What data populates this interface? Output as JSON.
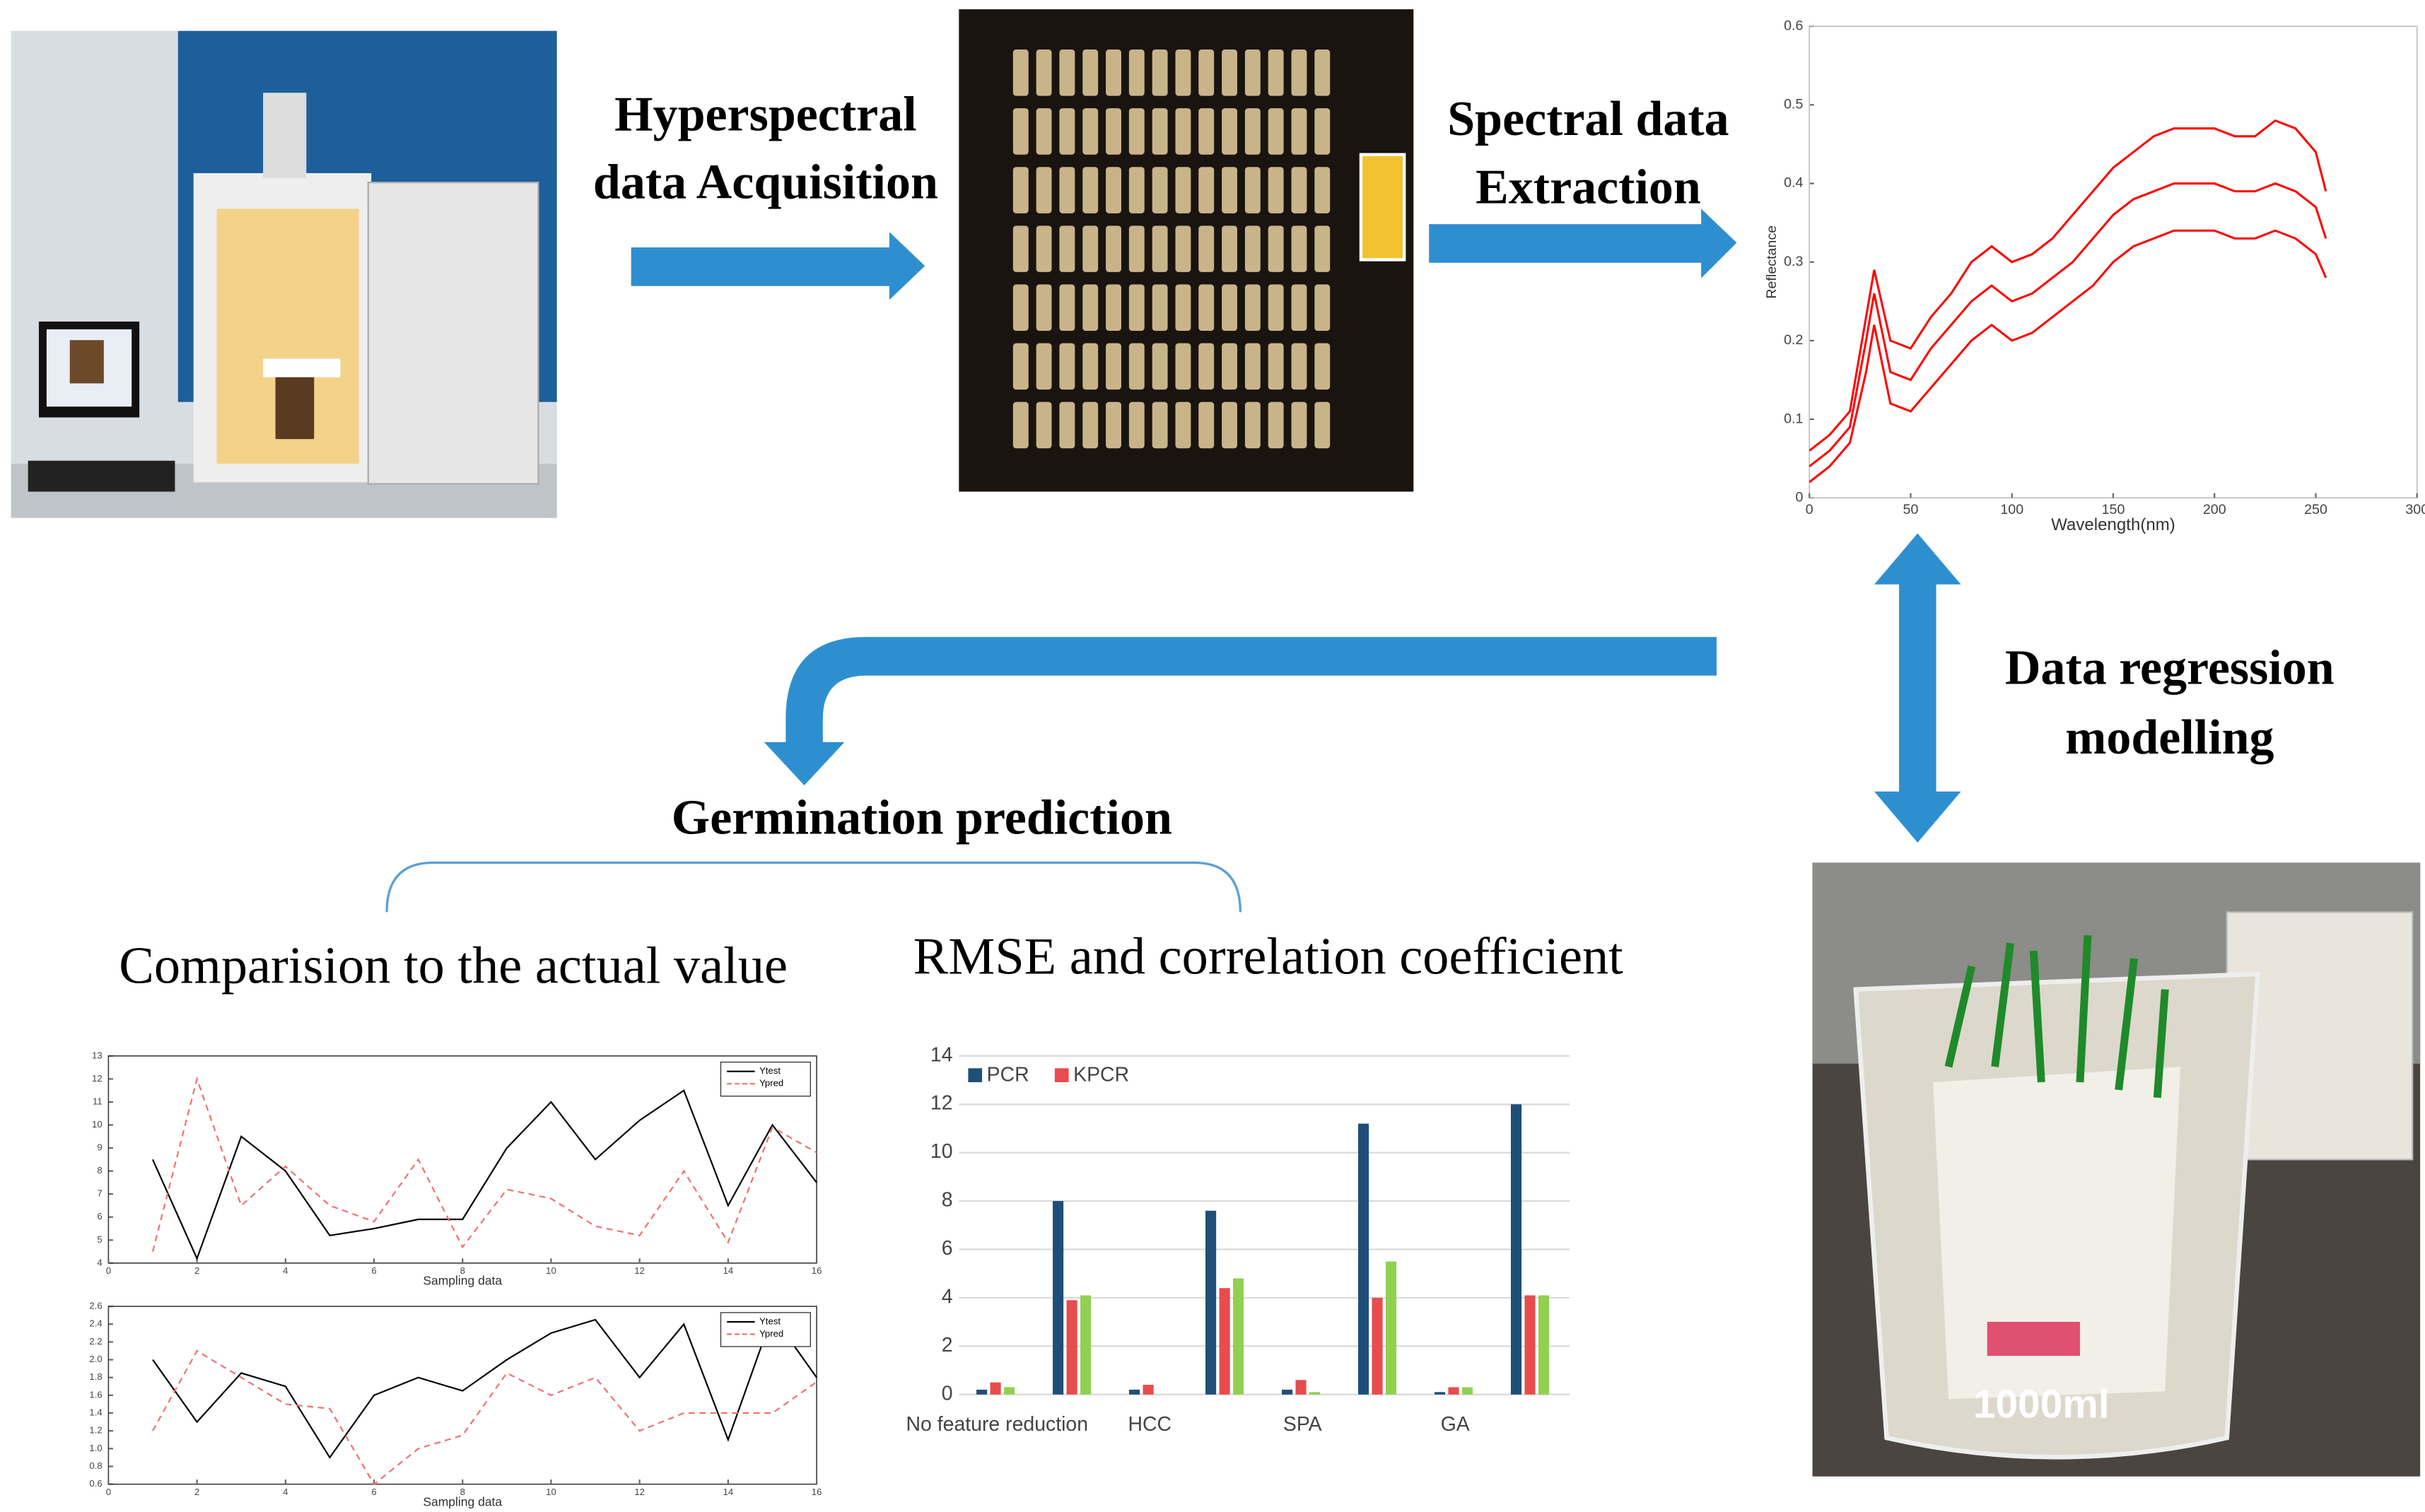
{
  "steps": {
    "acquisition": [
      "Hyperspectral",
      "data Acquisition"
    ],
    "extraction": [
      "Spectral data",
      "Extraction"
    ],
    "regression": [
      "Data regression",
      "modelling"
    ],
    "prediction": "Germination prediction"
  },
  "subtitles": [
    "Comparision to the actual value",
    "RMSE and correlation coefficient"
  ],
  "chart_data": [
    {
      "type": "line",
      "xlabel": "Wavelength(nm)",
      "ylabel": "Reflectance",
      "color": "#ff0000",
      "x": [
        0,
        10,
        20,
        28,
        32,
        40,
        50,
        60,
        70,
        80,
        90,
        100,
        110,
        120,
        130,
        140,
        150,
        160,
        170,
        180,
        190,
        200,
        210,
        220,
        230,
        240,
        250,
        255
      ],
      "series": [
        {
          "values": [
            0.02,
            0.04,
            0.07,
            0.16,
            0.22,
            0.12,
            0.11,
            0.14,
            0.17,
            0.2,
            0.22,
            0.2,
            0.21,
            0.23,
            0.25,
            0.27,
            0.3,
            0.32,
            0.33,
            0.34,
            0.34,
            0.34,
            0.33,
            0.33,
            0.34,
            0.33,
            0.31,
            0.28
          ]
        },
        {
          "values": [
            0.04,
            0.06,
            0.09,
            0.2,
            0.26,
            0.16,
            0.15,
            0.19,
            0.22,
            0.25,
            0.27,
            0.25,
            0.26,
            0.28,
            0.3,
            0.33,
            0.36,
            0.38,
            0.39,
            0.4,
            0.4,
            0.4,
            0.39,
            0.39,
            0.4,
            0.39,
            0.37,
            0.33
          ]
        },
        {
          "values": [
            0.06,
            0.08,
            0.11,
            0.23,
            0.29,
            0.2,
            0.19,
            0.23,
            0.26,
            0.3,
            0.32,
            0.3,
            0.31,
            0.33,
            0.36,
            0.39,
            0.42,
            0.44,
            0.46,
            0.47,
            0.47,
            0.47,
            0.46,
            0.46,
            0.48,
            0.47,
            0.44,
            0.39
          ]
        }
      ],
      "xlim": [
        0,
        300
      ],
      "xticks": [
        0,
        50,
        100,
        150,
        200,
        250,
        300
      ],
      "ylim": [
        0,
        0.6
      ],
      "yticks": [
        0,
        0.1,
        0.2,
        0.3,
        0.4,
        0.5,
        0.6
      ],
      "grid": false
    },
    {
      "type": "bar",
      "categories": [
        "No feature reduction",
        null,
        "HCC",
        null,
        "SPA",
        null,
        "GA",
        null
      ],
      "series": [
        {
          "name": "PCR",
          "color": "#1f4e79",
          "values": [
            0.2,
            8,
            0.2,
            7.6,
            0.2,
            11.2,
            0.1,
            12
          ]
        },
        {
          "name": "KPCR",
          "color": "#e84c4c",
          "values": [
            0.5,
            3.9,
            0.4,
            4.4,
            0.6,
            4,
            0.3,
            4.1
          ]
        },
        {
          "color": "#92d050",
          "values": [
            0.3,
            4.1,
            0,
            4.8,
            0.1,
            5.5,
            0.3,
            4.1
          ]
        }
      ],
      "ylim": [
        0,
        14
      ],
      "yticks": [
        0,
        2,
        4,
        6,
        8,
        10,
        12,
        14
      ],
      "grid": true
    },
    {
      "type": "line",
      "xlabel": "Sampling data",
      "x": [
        1,
        2,
        3,
        4,
        5,
        6,
        7,
        8,
        9,
        10,
        11,
        12,
        13,
        14,
        15,
        16
      ],
      "series": [
        {
          "name": "Ytest",
          "color": "#000000",
          "style": "solid",
          "values": [
            8.5,
            4.2,
            9.5,
            8,
            5.2,
            5.5,
            5.9,
            5.9,
            9,
            11,
            8.5,
            10.2,
            11.5,
            6.5,
            10,
            7.5
          ]
        },
        {
          "name": "Ypred",
          "color": "#f07070",
          "style": "dashed",
          "values": [
            4.5,
            12,
            6.5,
            8.2,
            6.5,
            5.8,
            8.5,
            4.7,
            7.2,
            6.8,
            5.6,
            5.2,
            8,
            4.9,
            9.9,
            8.8
          ]
        }
      ],
      "xlim": [
        0,
        16
      ],
      "xticks": [
        0,
        2,
        4,
        6,
        8,
        10,
        12,
        14,
        16
      ],
      "ylim": [
        4,
        13
      ],
      "yticks": [
        4,
        5,
        6,
        7,
        8,
        9,
        10,
        11,
        12,
        13
      ],
      "grid": false
    },
    {
      "type": "line",
      "xlabel": "Sampling data",
      "x": [
        1,
        2,
        3,
        4,
        5,
        6,
        7,
        8,
        9,
        10,
        11,
        12,
        13,
        14,
        15,
        16
      ],
      "series": [
        {
          "name": "Ytest",
          "color": "#000000",
          "style": "solid",
          "values": [
            2,
            1.3,
            1.85,
            1.7,
            0.9,
            1.6,
            1.8,
            1.65,
            2,
            2.3,
            2.45,
            1.8,
            2.4,
            1.1,
            2.5,
            1.8
          ]
        },
        {
          "name": "Ypred",
          "color": "#f07070",
          "style": "dashed",
          "values": [
            1.2,
            2.1,
            1.8,
            1.5,
            1.45,
            0.6,
            1,
            1.15,
            1.85,
            1.6,
            1.8,
            1.2,
            1.4,
            1.4,
            1.4,
            1.75
          ]
        }
      ],
      "xlim": [
        0,
        16
      ],
      "xticks": [
        0,
        2,
        4,
        6,
        8,
        10,
        12,
        14,
        16
      ],
      "ylim": [
        0.6,
        2.6
      ],
      "yticks": [
        0.6,
        0.8,
        {
          "value": 1,
          "label": "1.0"
        },
        1.2,
        1.4,
        1.6,
        1.8,
        {
          "value": 2,
          "label": "2.0"
        },
        2.2,
        2.4,
        2.6
      ],
      "grid": false
    }
  ]
}
